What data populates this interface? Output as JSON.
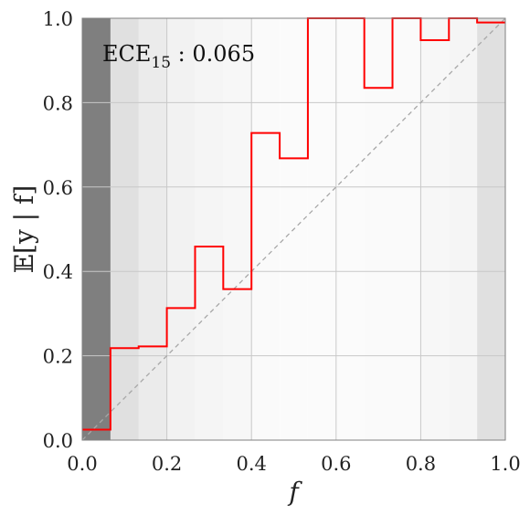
{
  "chart_data": {
    "type": "line",
    "title": "",
    "xlabel": "f",
    "ylabel": "𝔼[y | f]",
    "xlim": [
      0,
      1
    ],
    "ylim": [
      0,
      1
    ],
    "xticks": [
      "0.0",
      "0.2",
      "0.4",
      "0.6",
      "0.8",
      "1.0"
    ],
    "yticks": [
      "0.0",
      "0.2",
      "0.4",
      "0.6",
      "0.8",
      "1.0"
    ],
    "grid": true,
    "annotation": {
      "main": "ECE",
      "sub": "15",
      "value": " : 0.065"
    },
    "num_bins": 15,
    "bin_shade": [
      0.5,
      0.12,
      0.08,
      0.05,
      0.04,
      0.03,
      0.02,
      0.015,
      0.015,
      0.015,
      0.02,
      0.02,
      0.03,
      0.04,
      0.12
    ],
    "series": [
      {
        "type": "step",
        "color": "#ff0000",
        "bin_edges": [
          0,
          0.0667,
          0.1333,
          0.2,
          0.2667,
          0.3333,
          0.4,
          0.4667,
          0.5333,
          0.6,
          0.6667,
          0.7333,
          0.8,
          0.8667,
          0.9333,
          1.0
        ],
        "values": [
          0.025,
          0.218,
          0.222,
          0.313,
          0.459,
          0.358,
          0.728,
          0.668,
          1.0,
          1.0,
          0.835,
          1.0,
          0.948,
          1.0,
          0.99
        ]
      }
    ],
    "reference_line": {
      "style": "dashed",
      "from": [
        0,
        0
      ],
      "to": [
        1,
        1
      ]
    }
  }
}
